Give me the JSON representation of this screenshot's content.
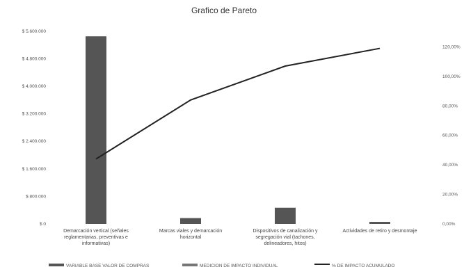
{
  "chart_data": {
    "type": "bar",
    "title": "Grafico de Pareto",
    "categories": [
      "Demarcación vertical (señales reglamentarias, preventivas e informativas)",
      "Marcas viales y demarcación horizontal",
      "Dispositivos de canalización y segregación vial (tachones, delineadores, hitos)",
      "Actividades de retiro y desmontaje"
    ],
    "series": [
      {
        "name": "VARIABLE BASE VALOR DE COMPRAS",
        "kind": "bar",
        "axis": "left",
        "color": "#555555",
        "values": [
          5450000,
          170000,
          470000,
          60000
        ]
      },
      {
        "name": "MEDICION DE IMPACTO INDIVIDUAL",
        "kind": "bar",
        "axis": "left",
        "color": "#777777",
        "values": [
          0,
          0,
          0,
          0
        ]
      },
      {
        "name": "% DE IMPACTO ACUMULADO",
        "kind": "line",
        "axis": "right",
        "color": "#222222",
        "values": [
          0.44,
          0.84,
          1.07,
          1.19
        ]
      }
    ],
    "left_axis": {
      "ylim": [
        0,
        6000000
      ],
      "ticks": [
        0,
        800000,
        1600000,
        2400000,
        3200000,
        4000000,
        4800000,
        5600000
      ],
      "tick_labels": [
        "$ 0",
        "$ 800.000",
        "$ 1.600.000",
        "$ 2.400.000",
        "$ 3.200.000",
        "$ 4.000.000",
        "$ 4.800.000",
        "$ 5.600.000"
      ]
    },
    "right_axis": {
      "ylim": [
        0,
        1.4
      ],
      "ticks": [
        0,
        0.2,
        0.4,
        0.6,
        0.8,
        1.0,
        1.2
      ],
      "tick_labels": [
        "0,00%",
        "20,00%",
        "40,00%",
        "60,00%",
        "80,00%",
        "100,00%",
        "120,00%"
      ]
    },
    "grid": false,
    "legend_position": "bottom"
  }
}
